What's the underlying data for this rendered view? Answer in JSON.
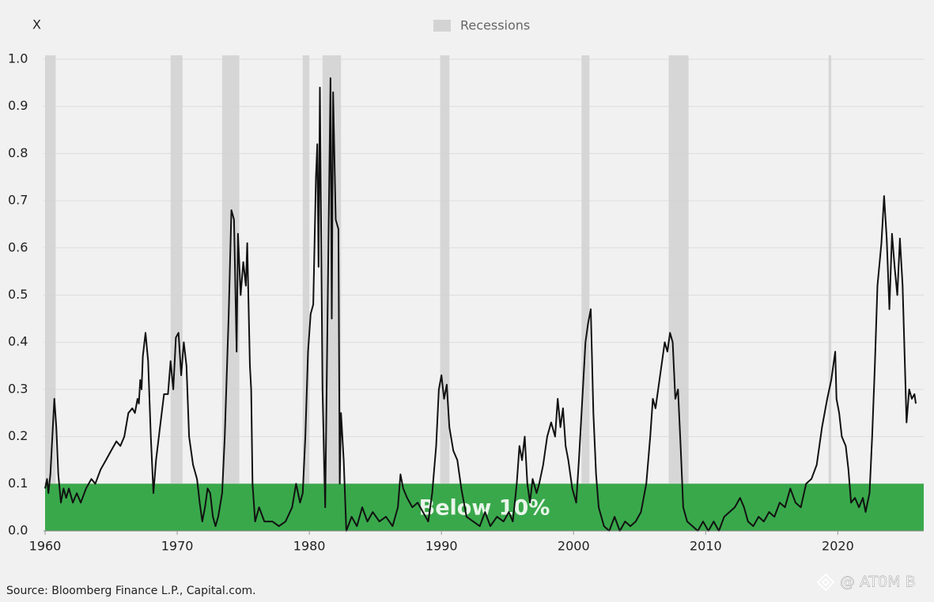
{
  "chart_data": {
    "type": "line",
    "y_label": "X",
    "source": "Source: Bloomberg Finance L.P., Capital.com.",
    "watermark": "@ AT0M B",
    "xlim": [
      1960,
      2026.5
    ],
    "ylim": [
      0,
      1.0
    ],
    "xticks": [
      1960,
      1970,
      1980,
      1990,
      2000,
      2010,
      2020
    ],
    "yticks": [
      {
        "value": 0,
        "label": "0.0"
      },
      0.1,
      0.2,
      0.3,
      0.4,
      0.5,
      0.6,
      0.7,
      0.8,
      0.9,
      {
        "value": 1,
        "label": "1.0"
      }
    ],
    "grid": true,
    "legend": "top",
    "threshold": {
      "value": 0.1,
      "label": "Below 10%",
      "color": "#39a84b"
    },
    "recessions": {
      "name": "Recessions",
      "color": "#d3d3d3",
      "periods": [
        [
          1960.0,
          1960.8
        ],
        [
          1969.5,
          1970.4
        ],
        [
          1973.4,
          1974.7
        ],
        [
          1979.5,
          1980.0
        ],
        [
          1981.0,
          1982.4
        ],
        [
          1989.9,
          1990.6
        ],
        [
          2000.6,
          2001.2
        ],
        [
          2007.2,
          2008.7
        ],
        [
          2019.3,
          2019.5
        ]
      ]
    },
    "series": [
      {
        "color": "#111111",
        "x": [
          1960.0,
          1960.15,
          1960.25,
          1960.4,
          1960.55,
          1960.7,
          1960.85,
          1961.0,
          1961.2,
          1961.4,
          1961.6,
          1961.8,
          1962.1,
          1962.4,
          1962.7,
          1963.1,
          1963.5,
          1963.8,
          1964.2,
          1964.6,
          1965.0,
          1965.4,
          1965.7,
          1966.0,
          1966.3,
          1966.6,
          1966.8,
          1967.0,
          1967.1,
          1967.2,
          1967.3,
          1967.4,
          1967.6,
          1967.8,
          1968.0,
          1968.2,
          1968.4,
          1968.7,
          1969.0,
          1969.3,
          1969.5,
          1969.7,
          1969.9,
          1970.1,
          1970.3,
          1970.5,
          1970.7,
          1970.9,
          1971.2,
          1971.5,
          1971.7,
          1971.9,
          1972.1,
          1972.3,
          1972.5,
          1972.7,
          1972.9,
          1973.1,
          1973.4,
          1973.6,
          1973.9,
          1974.1,
          1974.3,
          1974.5,
          1974.6,
          1974.8,
          1975.0,
          1975.2,
          1975.3,
          1975.5,
          1975.6,
          1975.7,
          1975.9,
          1976.2,
          1976.6,
          1977.2,
          1977.7,
          1978.2,
          1978.7,
          1979.0,
          1979.3,
          1979.5,
          1979.7,
          1979.9,
          1980.1,
          1980.3,
          1980.5,
          1980.6,
          1980.7,
          1980.8,
          1981.0,
          1981.2,
          1981.4,
          1981.6,
          1981.7,
          1981.8,
          1982.0,
          1982.2,
          1982.3,
          1982.4,
          1982.6,
          1982.8,
          1983.2,
          1983.6,
          1984.0,
          1984.4,
          1984.8,
          1985.3,
          1985.8,
          1986.3,
          1986.7,
          1986.9,
          1987.1,
          1987.4,
          1987.8,
          1988.2,
          1988.6,
          1989.0,
          1989.3,
          1989.6,
          1989.8,
          1990.0,
          1990.2,
          1990.4,
          1990.6,
          1990.9,
          1991.2,
          1991.5,
          1991.9,
          1992.4,
          1992.9,
          1993.3,
          1993.7,
          1994.2,
          1994.7,
          1995.1,
          1995.4,
          1995.7,
          1995.9,
          1996.1,
          1996.3,
          1996.5,
          1996.7,
          1996.9,
          1997.2,
          1997.4,
          1997.7,
          1998.0,
          1998.3,
          1998.6,
          1998.8,
          1999.0,
          1999.2,
          1999.4,
          1999.6,
          1999.9,
          2000.2,
          2000.4,
          2000.7,
          2000.9,
          2001.1,
          2001.3,
          2001.5,
          2001.7,
          2001.9,
          2002.3,
          2002.7,
          2003.1,
          2003.5,
          2003.9,
          2004.3,
          2004.7,
          2005.1,
          2005.5,
          2005.8,
          2006.0,
          2006.2,
          2006.4,
          2006.7,
          2006.9,
          2007.1,
          2007.3,
          2007.5,
          2007.7,
          2007.9,
          2008.1,
          2008.3,
          2008.6,
          2009.0,
          2009.4,
          2009.8,
          2010.2,
          2010.6,
          2011.0,
          2011.4,
          2011.8,
          2012.2,
          2012.6,
          2012.9,
          2013.2,
          2013.6,
          2014.0,
          2014.4,
          2014.8,
          2015.2,
          2015.6,
          2016.0,
          2016.4,
          2016.8,
          2017.2,
          2017.6,
          2018.0,
          2018.4,
          2018.8,
          2019.2,
          2019.5,
          2019.8,
          2019.9,
          2020.1,
          2020.3,
          2020.6,
          2020.8,
          2021.0,
          2021.3,
          2021.6,
          2021.9,
          2022.1,
          2022.4,
          2022.6,
          2022.8,
          2023.0,
          2023.3,
          2023.5,
          2023.7,
          2023.9,
          2024.1,
          2024.3,
          2024.5,
          2024.7,
          2024.9,
          2025.2,
          2025.4,
          2025.6,
          2025.8,
          2025.9
        ],
        "values": [
          0.09,
          0.11,
          0.08,
          0.12,
          0.2,
          0.28,
          0.22,
          0.12,
          0.06,
          0.09,
          0.07,
          0.09,
          0.06,
          0.08,
          0.06,
          0.09,
          0.11,
          0.1,
          0.13,
          0.15,
          0.17,
          0.19,
          0.18,
          0.2,
          0.25,
          0.26,
          0.25,
          0.28,
          0.27,
          0.32,
          0.3,
          0.37,
          0.42,
          0.36,
          0.2,
          0.08,
          0.15,
          0.22,
          0.29,
          0.29,
          0.36,
          0.3,
          0.41,
          0.42,
          0.33,
          0.4,
          0.35,
          0.2,
          0.14,
          0.11,
          0.06,
          0.02,
          0.05,
          0.09,
          0.08,
          0.03,
          0.01,
          0.03,
          0.08,
          0.2,
          0.46,
          0.68,
          0.66,
          0.38,
          0.63,
          0.5,
          0.57,
          0.52,
          0.61,
          0.35,
          0.3,
          0.1,
          0.02,
          0.05,
          0.02,
          0.02,
          0.01,
          0.02,
          0.05,
          0.1,
          0.06,
          0.08,
          0.2,
          0.38,
          0.46,
          0.48,
          0.75,
          0.82,
          0.56,
          0.94,
          0.3,
          0.05,
          0.5,
          0.96,
          0.45,
          0.93,
          0.66,
          0.64,
          0.1,
          0.25,
          0.15,
          0.0,
          0.03,
          0.01,
          0.05,
          0.02,
          0.04,
          0.02,
          0.03,
          0.01,
          0.05,
          0.12,
          0.09,
          0.07,
          0.05,
          0.06,
          0.04,
          0.02,
          0.08,
          0.18,
          0.3,
          0.33,
          0.28,
          0.31,
          0.22,
          0.17,
          0.15,
          0.09,
          0.03,
          0.02,
          0.01,
          0.04,
          0.01,
          0.03,
          0.02,
          0.04,
          0.02,
          0.1,
          0.18,
          0.15,
          0.2,
          0.1,
          0.06,
          0.11,
          0.08,
          0.1,
          0.14,
          0.2,
          0.23,
          0.2,
          0.28,
          0.22,
          0.26,
          0.18,
          0.15,
          0.09,
          0.06,
          0.15,
          0.3,
          0.4,
          0.44,
          0.47,
          0.25,
          0.12,
          0.05,
          0.01,
          0.0,
          0.03,
          0.0,
          0.02,
          0.01,
          0.02,
          0.04,
          0.1,
          0.2,
          0.28,
          0.26,
          0.3,
          0.36,
          0.4,
          0.38,
          0.42,
          0.4,
          0.28,
          0.3,
          0.18,
          0.05,
          0.02,
          0.01,
          0.0,
          0.02,
          0.0,
          0.02,
          0.0,
          0.03,
          0.04,
          0.05,
          0.07,
          0.05,
          0.02,
          0.01,
          0.03,
          0.02,
          0.04,
          0.03,
          0.06,
          0.05,
          0.09,
          0.06,
          0.05,
          0.1,
          0.11,
          0.14,
          0.22,
          0.28,
          0.32,
          0.38,
          0.28,
          0.25,
          0.2,
          0.18,
          0.13,
          0.06,
          0.07,
          0.05,
          0.07,
          0.04,
          0.08,
          0.2,
          0.35,
          0.52,
          0.61,
          0.71,
          0.62,
          0.47,
          0.63,
          0.56,
          0.5,
          0.62,
          0.52,
          0.23,
          0.3,
          0.28,
          0.29,
          0.27
        ]
      }
    ]
  }
}
